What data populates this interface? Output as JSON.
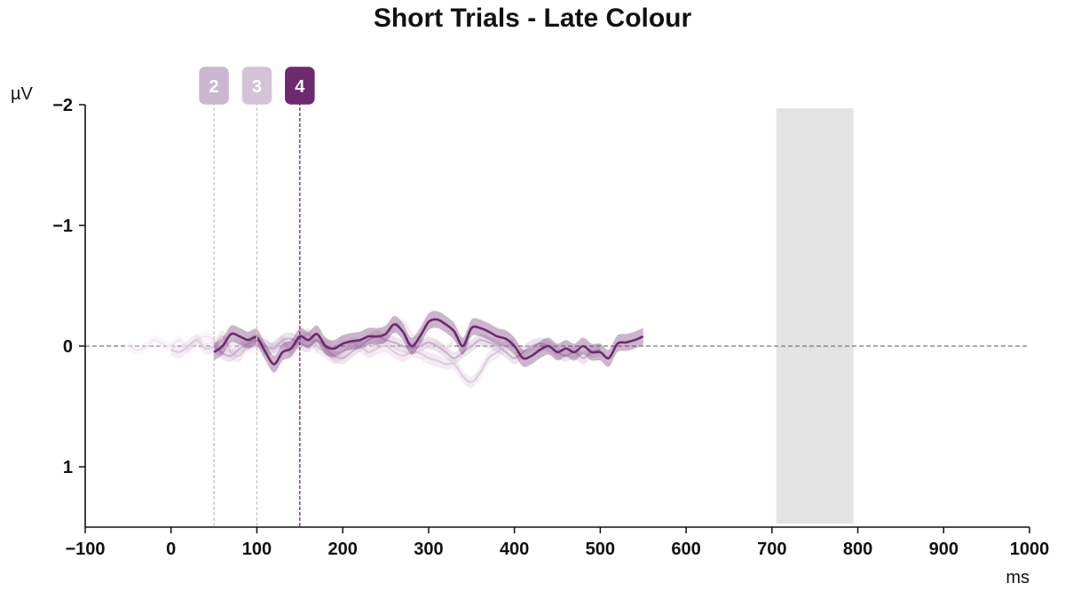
{
  "chart_data": {
    "type": "line",
    "title": "Short Trials - Late Colour",
    "xlabel": "ms",
    "ylabel": "µV",
    "xlim": [
      -100,
      1000
    ],
    "ylim": [
      -2,
      1.5
    ],
    "y_inverted": true,
    "x_ticks": [
      -100,
      0,
      100,
      200,
      300,
      400,
      500,
      600,
      700,
      800,
      900,
      1000
    ],
    "x_tick_labels": [
      "−100",
      "0",
      "100",
      "200",
      "300",
      "400",
      "500",
      "600",
      "700",
      "800",
      "900",
      "1000"
    ],
    "y_ticks": [
      -2,
      -1,
      0,
      1
    ],
    "y_tick_labels": [
      "−2",
      "−1",
      "0",
      "1"
    ],
    "zero_line": true,
    "shaded_region": {
      "x_start": 705,
      "x_end": 795,
      "color": "#e3e3e3"
    },
    "markers": [
      {
        "label": "2",
        "x": 50,
        "color": "#cbb6cf",
        "line_color": "#c8c8c8"
      },
      {
        "label": "3",
        "x": 100,
        "color": "#d4c3d6",
        "line_color": "#c8c8c8"
      },
      {
        "label": "4",
        "x": 150,
        "color": "#6d2a6e",
        "line_color": "#6d2a6e"
      }
    ],
    "series": [
      {
        "color": "#f0e6f0",
        "opacity": 0.9,
        "x": [
          -50,
          -40,
          -30,
          -20,
          -10,
          0,
          10,
          20,
          30,
          40,
          50,
          60,
          70,
          80,
          90,
          100,
          110,
          120,
          130,
          140,
          150,
          160,
          170,
          180,
          190,
          200,
          210,
          220,
          230,
          240,
          250,
          260,
          270,
          280,
          290,
          300,
          310,
          320,
          330,
          340,
          350
        ],
        "y": [
          0.0,
          0.03,
          0.01,
          -0.05,
          -0.02,
          0.0,
          -0.05,
          0.02,
          -0.05,
          -0.08,
          -0.05,
          0.05,
          0.0,
          -0.05,
          0.02,
          0.0,
          -0.05,
          0.02,
          -0.03,
          0.05,
          0.0,
          -0.05,
          0.03,
          -0.04,
          0.02,
          -0.05,
          0.0,
          -0.03,
          0.05,
          -0.02,
          -0.1,
          -0.15,
          -0.2,
          -0.1,
          -0.05,
          0.0,
          -0.03,
          0.02,
          -0.05,
          -0.03,
          0.0
        ],
        "band": 0.04
      },
      {
        "color": "#dcc8dd",
        "opacity": 0.95,
        "x": [
          0,
          10,
          20,
          30,
          40,
          50,
          60,
          70,
          80,
          90,
          100,
          110,
          120,
          130,
          140,
          150,
          160,
          170,
          180,
          190,
          200,
          210,
          220,
          230,
          240,
          250,
          260,
          270,
          280,
          290,
          300,
          310,
          320,
          330,
          340,
          350,
          360,
          370,
          380,
          390,
          400
        ],
        "y": [
          0.03,
          0.05,
          0.0,
          -0.05,
          0.02,
          0.0,
          -0.08,
          0.05,
          0.08,
          -0.02,
          -0.05,
          0.03,
          0.0,
          -0.04,
          0.02,
          -0.05,
          -0.1,
          0.0,
          0.05,
          0.1,
          0.05,
          -0.02,
          0.0,
          0.05,
          0.02,
          0.0,
          0.05,
          0.08,
          0.05,
          0.06,
          0.1,
          0.12,
          0.15,
          0.15,
          0.25,
          0.3,
          0.22,
          0.1,
          0.05,
          0.0,
          -0.02
        ],
        "band": 0.05
      },
      {
        "color": "#c9b0cb",
        "opacity": 1,
        "x": [
          50,
          60,
          70,
          80,
          90,
          100,
          110,
          120,
          130,
          140,
          150,
          160,
          170,
          180,
          190,
          200,
          210,
          220,
          230,
          240,
          250,
          260,
          270,
          280,
          290,
          300,
          310,
          320,
          330,
          340,
          350,
          360,
          370,
          380,
          390,
          400,
          410,
          420,
          430,
          440,
          450,
          460,
          470,
          480,
          490,
          500
        ],
        "y": [
          0.0,
          0.06,
          0.08,
          0.02,
          -0.02,
          -0.04,
          0.0,
          0.02,
          -0.05,
          -0.06,
          -0.02,
          0.0,
          -0.05,
          0.02,
          0.08,
          0.1,
          0.05,
          0.0,
          -0.05,
          -0.08,
          -0.05,
          -0.03,
          0.0,
          0.02,
          0.0,
          -0.03,
          0.0,
          0.05,
          0.1,
          0.05,
          0.0,
          -0.05,
          -0.03,
          0.0,
          0.05,
          0.1,
          0.05,
          0.0,
          -0.02,
          0.0,
          0.05,
          0.08,
          0.05,
          0.1,
          0.05,
          0.03
        ],
        "band": 0.05
      },
      {
        "color": "#6d2a6e",
        "opacity": 1,
        "x": [
          50,
          60,
          70,
          80,
          90,
          100,
          110,
          120,
          130,
          140,
          150,
          160,
          170,
          180,
          190,
          200,
          210,
          220,
          230,
          240,
          250,
          260,
          270,
          280,
          290,
          300,
          310,
          320,
          330,
          340,
          350,
          360,
          370,
          380,
          390,
          400,
          410,
          420,
          430,
          440,
          450,
          460,
          470,
          480,
          490,
          500,
          510,
          520,
          530,
          540,
          550
        ],
        "y": [
          0.05,
          0.0,
          -0.1,
          -0.08,
          -0.05,
          -0.07,
          0.05,
          0.15,
          0.05,
          0.02,
          -0.08,
          -0.05,
          -0.1,
          0.0,
          0.02,
          -0.02,
          -0.04,
          -0.05,
          -0.08,
          -0.08,
          -0.1,
          -0.18,
          -0.12,
          0.0,
          -0.08,
          -0.2,
          -0.22,
          -0.18,
          -0.12,
          0.0,
          -0.15,
          -0.15,
          -0.12,
          -0.08,
          -0.06,
          0.0,
          0.1,
          0.08,
          0.03,
          0.0,
          0.05,
          0.02,
          0.05,
          0.0,
          0.05,
          0.05,
          0.1,
          -0.02,
          -0.03,
          -0.05,
          -0.08
        ],
        "band": 0.07
      }
    ]
  }
}
